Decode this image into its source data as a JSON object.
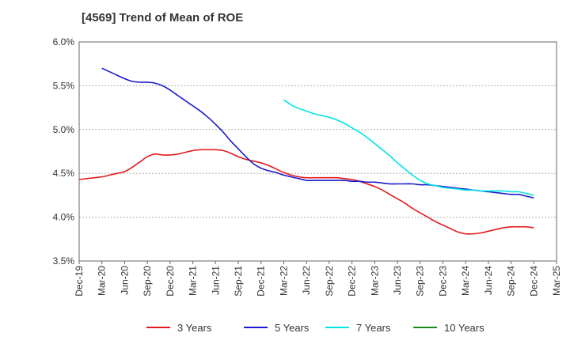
{
  "chart_data": {
    "type": "line",
    "title": "[4569]  Trend of Mean of ROE",
    "xlabel": "",
    "ylabel": "",
    "x_ticks": [
      "Dec-19",
      "Mar-20",
      "Jun-20",
      "Sep-20",
      "Dec-20",
      "Mar-21",
      "Jun-21",
      "Sep-21",
      "Dec-21",
      "Mar-22",
      "Jun-22",
      "Sep-22",
      "Dec-22",
      "Mar-23",
      "Jun-23",
      "Sep-23",
      "Dec-23",
      "Mar-24",
      "Jun-24",
      "Sep-24",
      "Dec-24",
      "Mar-25"
    ],
    "y_ticks": [
      "3.5%",
      "4.0%",
      "4.5%",
      "5.0%",
      "5.5%",
      "6.0%"
    ],
    "ylim": [
      3.5,
      6.0
    ],
    "grid": "horizontal dashed",
    "legend_position": "bottom",
    "series": [
      {
        "name": "3 Years",
        "color": "#e31a1c",
        "x": [
          "Dec-19",
          "Jan-20",
          "Feb-20",
          "Mar-20",
          "Apr-20",
          "May-20",
          "Jun-20",
          "Jul-20",
          "Aug-20",
          "Sep-20",
          "Oct-20",
          "Nov-20",
          "Dec-20",
          "Jan-21",
          "Feb-21",
          "Mar-21",
          "Apr-21",
          "May-21",
          "Jun-21",
          "Jul-21",
          "Aug-21",
          "Sep-21",
          "Oct-21",
          "Nov-21",
          "Dec-21",
          "Jan-22",
          "Feb-22",
          "Mar-22",
          "Apr-22",
          "May-22",
          "Jun-22",
          "Jul-22",
          "Aug-22",
          "Sep-22",
          "Oct-22",
          "Nov-22",
          "Dec-22",
          "Jan-23",
          "Feb-23",
          "Mar-23",
          "Apr-23",
          "May-23",
          "Jun-23",
          "Jul-23",
          "Aug-23",
          "Sep-23",
          "Oct-23",
          "Nov-23",
          "Dec-23",
          "Jan-24",
          "Feb-24",
          "Mar-24",
          "Apr-24",
          "May-24",
          "Jun-24",
          "Jul-24",
          "Aug-24",
          "Sep-24",
          "Oct-24",
          "Nov-24",
          "Dec-24"
        ],
        "values": [
          4.43,
          4.44,
          4.45,
          4.46,
          4.48,
          4.5,
          4.52,
          4.57,
          4.63,
          4.69,
          4.72,
          4.71,
          4.71,
          4.72,
          4.74,
          4.76,
          4.77,
          4.77,
          4.77,
          4.76,
          4.73,
          4.69,
          4.66,
          4.64,
          4.62,
          4.59,
          4.55,
          4.51,
          4.48,
          4.46,
          4.45,
          4.45,
          4.45,
          4.45,
          4.45,
          4.44,
          4.43,
          4.41,
          4.38,
          4.35,
          4.31,
          4.26,
          4.21,
          4.16,
          4.1,
          4.05,
          4.0,
          3.95,
          3.91,
          3.87,
          3.83,
          3.81,
          3.81,
          3.82,
          3.84,
          3.86,
          3.88,
          3.89,
          3.89,
          3.89,
          3.88
        ]
      },
      {
        "name": "5 Years",
        "color": "#1a1acd",
        "x": [
          "Mar-20",
          "Apr-20",
          "May-20",
          "Jun-20",
          "Jul-20",
          "Aug-20",
          "Sep-20",
          "Oct-20",
          "Nov-20",
          "Dec-20",
          "Jan-21",
          "Feb-21",
          "Mar-21",
          "Apr-21",
          "May-21",
          "Jun-21",
          "Jul-21",
          "Aug-21",
          "Sep-21",
          "Oct-21",
          "Nov-21",
          "Dec-21",
          "Jan-22",
          "Feb-22",
          "Mar-22",
          "Apr-22",
          "May-22",
          "Jun-22",
          "Jul-22",
          "Aug-22",
          "Sep-22",
          "Oct-22",
          "Nov-22",
          "Dec-22",
          "Jan-23",
          "Feb-23",
          "Mar-23",
          "Apr-23",
          "May-23",
          "Jun-23",
          "Jul-23",
          "Aug-23",
          "Sep-23",
          "Oct-23",
          "Nov-23",
          "Dec-23",
          "Jan-24",
          "Feb-24",
          "Mar-24",
          "Apr-24",
          "May-24",
          "Jun-24",
          "Jul-24",
          "Aug-24",
          "Sep-24",
          "Oct-24",
          "Nov-24",
          "Dec-24"
        ],
        "values": [
          5.7,
          5.66,
          5.62,
          5.58,
          5.55,
          5.54,
          5.54,
          5.53,
          5.5,
          5.45,
          5.39,
          5.33,
          5.27,
          5.21,
          5.14,
          5.06,
          4.97,
          4.87,
          4.78,
          4.69,
          4.61,
          4.56,
          4.53,
          4.51,
          4.48,
          4.46,
          4.44,
          4.42,
          4.42,
          4.42,
          4.42,
          4.42,
          4.42,
          4.41,
          4.41,
          4.4,
          4.4,
          4.39,
          4.38,
          4.38,
          4.38,
          4.38,
          4.37,
          4.37,
          4.36,
          4.35,
          4.34,
          4.33,
          4.32,
          4.31,
          4.3,
          4.29,
          4.28,
          4.27,
          4.26,
          4.26,
          4.24,
          4.22
        ]
      },
      {
        "name": "7 Years",
        "color": "#00e5e5",
        "x": [
          "Mar-22",
          "Apr-22",
          "May-22",
          "Jun-22",
          "Jul-22",
          "Aug-22",
          "Sep-22",
          "Oct-22",
          "Nov-22",
          "Dec-22",
          "Jan-23",
          "Feb-23",
          "Mar-23",
          "Apr-23",
          "May-23",
          "Jun-23",
          "Jul-23",
          "Aug-23",
          "Sep-23",
          "Oct-23",
          "Nov-23",
          "Dec-23",
          "Jan-24",
          "Feb-24",
          "Mar-24",
          "Apr-24",
          "May-24",
          "Jun-24",
          "Jul-24",
          "Aug-24",
          "Sep-24",
          "Oct-24",
          "Nov-24",
          "Dec-24"
        ],
        "values": [
          5.34,
          5.28,
          5.24,
          5.21,
          5.18,
          5.16,
          5.14,
          5.11,
          5.07,
          5.02,
          4.97,
          4.91,
          4.84,
          4.77,
          4.7,
          4.62,
          4.55,
          4.48,
          4.42,
          4.38,
          4.36,
          4.34,
          4.33,
          4.32,
          4.31,
          4.31,
          4.3,
          4.3,
          4.3,
          4.3,
          4.29,
          4.29,
          4.27,
          4.25
        ]
      },
      {
        "name": "10 Years",
        "color": "#1a8a1a",
        "x": [],
        "values": []
      }
    ]
  }
}
